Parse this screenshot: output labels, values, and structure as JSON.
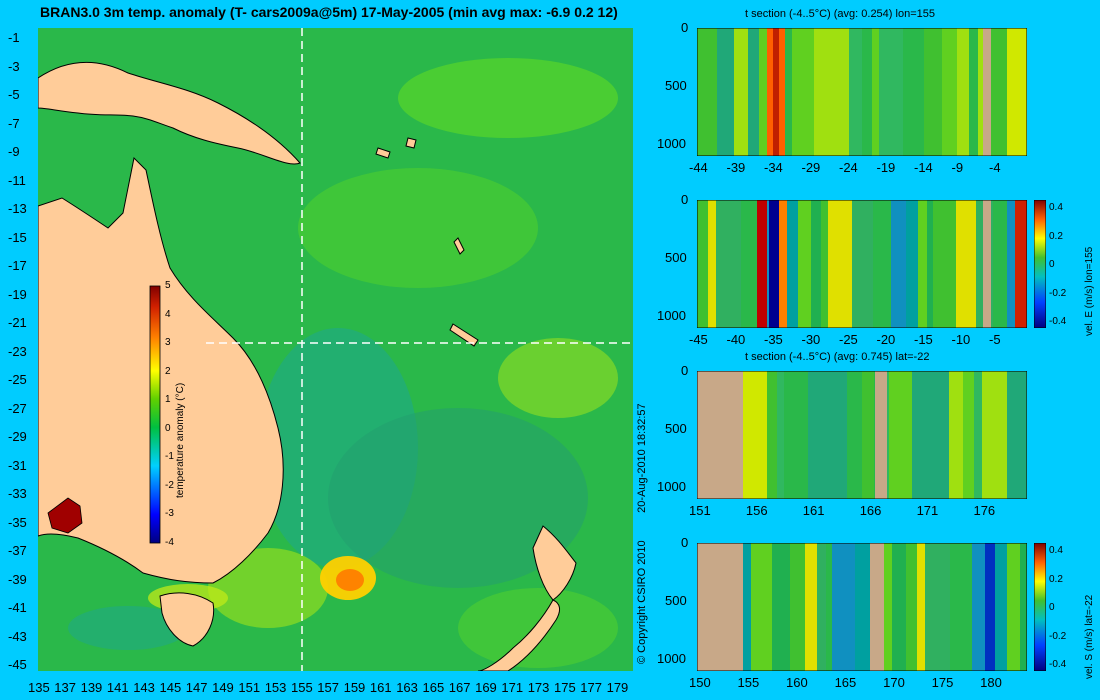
{
  "map": {
    "title": "BRAN3.0 3m temp. anomaly (T- cars2009a@5m) 17-May-2005 (min avg max: -6.9 0.2 12)",
    "lat_ticks": [
      "-1",
      "-3",
      "-5",
      "-7",
      "-9",
      "-11",
      "-13",
      "-15",
      "-17",
      "-19",
      "-21",
      "-23",
      "-25",
      "-27",
      "-29",
      "-31",
      "-33",
      "-35",
      "-37",
      "-39",
      "-41",
      "-43",
      "-45"
    ],
    "lon_ticks": [
      "135",
      "137",
      "139",
      "141",
      "143",
      "145",
      "147",
      "149",
      "151",
      "153",
      "155",
      "157",
      "159",
      "161",
      "163",
      "165",
      "167",
      "169",
      "171",
      "173",
      "175",
      "177",
      "179"
    ],
    "colorbar": {
      "label": "temperature anomaly (°C)",
      "ticks": [
        "5",
        "4",
        "3",
        "2",
        "1",
        "0",
        "-1",
        "-2",
        "-3",
        "-4"
      ]
    },
    "section_lon": 155,
    "section_lat": -22
  },
  "credits": {
    "timestamp": "20-Aug-2010 18:32:57",
    "copyright": "© Copyright CSIRO 2010"
  },
  "panels": [
    {
      "title": "t section (-4..5°C) (avg: 0.254) lon=155",
      "y_ticks": [
        "0",
        "500",
        "1000"
      ],
      "x_ticks": [
        "-44",
        "-39",
        "-34",
        "-29",
        "-24",
        "-19",
        "-14",
        "-9",
        "-4"
      ],
      "colorbar": null
    },
    {
      "title": "",
      "y_ticks": [
        "0",
        "500",
        "1000"
      ],
      "x_ticks": [
        "-45",
        "-40",
        "-35",
        "-30",
        "-25",
        "-20",
        "-15",
        "-10",
        "-5"
      ],
      "colorbar": {
        "label": "vel. E (m/s) lon=155",
        "ticks": [
          "0.4",
          "0.2",
          "0",
          "-0.2",
          "-0.4"
        ]
      }
    },
    {
      "title": "t section (-4..5°C) (avg: 0.745) lat=-22",
      "y_ticks": [
        "0",
        "500",
        "1000"
      ],
      "x_ticks": [
        "151",
        "156",
        "161",
        "166",
        "171",
        "176"
      ],
      "colorbar": null
    },
    {
      "title": "",
      "y_ticks": [
        "0",
        "500",
        "1000"
      ],
      "x_ticks": [
        "150",
        "155",
        "160",
        "165",
        "170",
        "175",
        "180"
      ],
      "colorbar": {
        "label": "vel. S (m/s) lat=-22",
        "ticks": [
          "0.4",
          "0.2",
          "0",
          "-0.2",
          "-0.4"
        ]
      }
    }
  ]
}
